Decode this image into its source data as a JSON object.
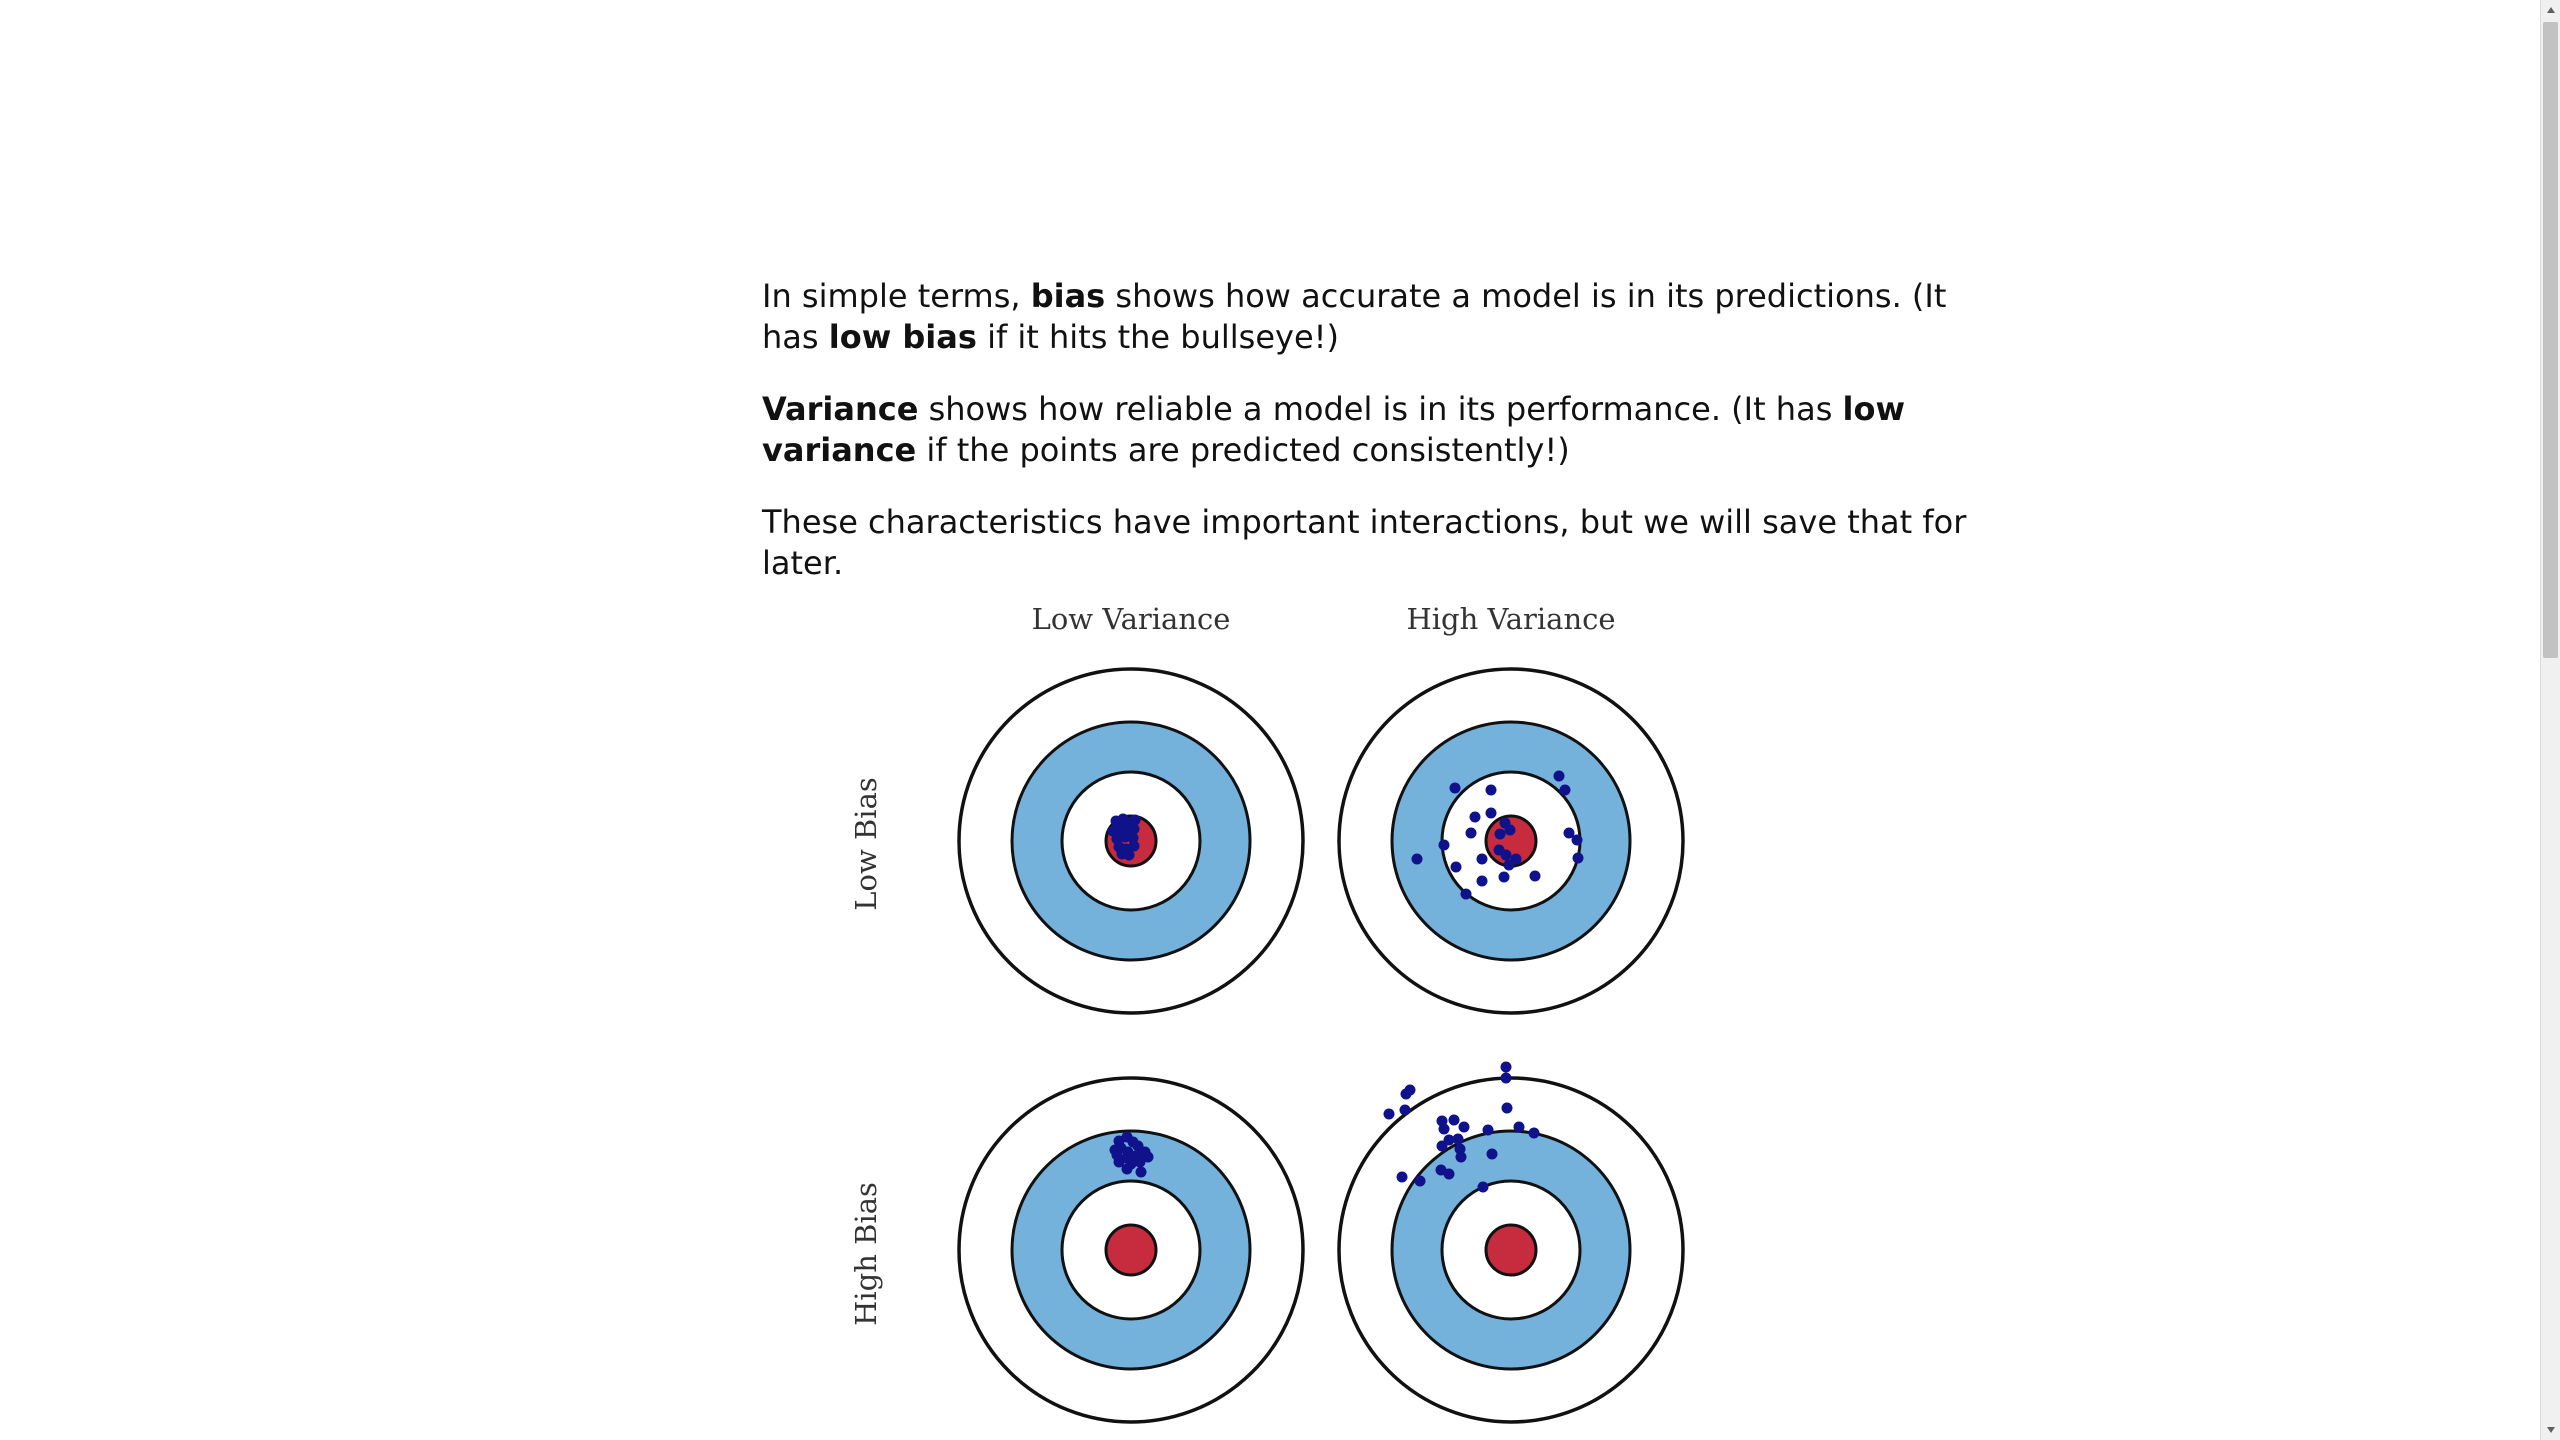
{
  "article": {
    "para1": {
      "t1": "In simple terms, ",
      "b1": "bias",
      "t2": " shows how accurate a model is in its predictions. (It has ",
      "b2": "low bias",
      "t3": " if it hits the bullseye!)"
    },
    "para2": {
      "b1": "Variance",
      "t1": " shows how reliable a model is in its performance. (It has ",
      "b2": "low variance",
      "t2": " if the points are predicted consistently!)"
    },
    "para3": "These characteristics have important interactions, but we will save that for later."
  },
  "figure": {
    "column_labels": [
      "Low Variance",
      "High Variance"
    ],
    "row_labels": [
      "Low Bias",
      "High Bias"
    ],
    "colors": {
      "ring_blue": "#74b1db",
      "bullseye_red": "#c62b3e",
      "point_navy": "#10128c",
      "outline": "#111111"
    }
  },
  "scrollbar": {
    "up_icon": "triangle-up-icon",
    "down_icon": "triangle-down-icon"
  }
}
